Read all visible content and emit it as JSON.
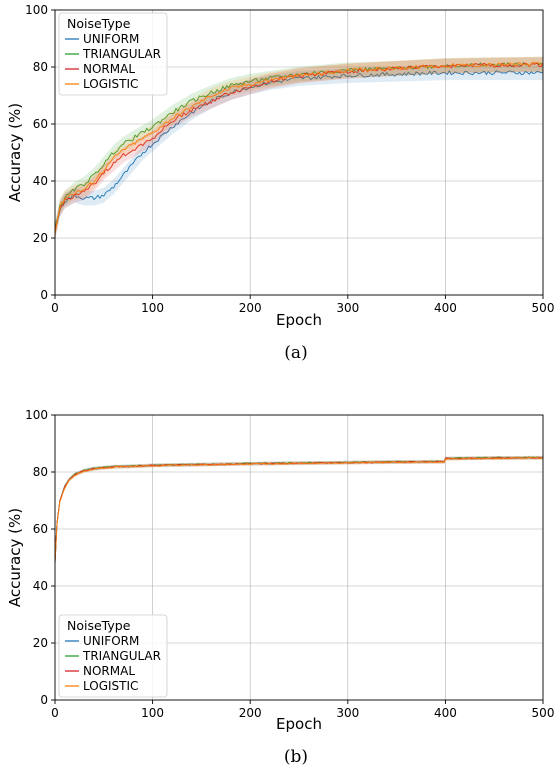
{
  "colors": {
    "UNIFORM": "#1f77b4",
    "TRIANGULAR": "#2ca02c",
    "NORMAL": "#d62728",
    "LOGISTIC": "#ff7f0e"
  },
  "chart_data": [
    {
      "id": "a",
      "type": "line",
      "caption": "(a)",
      "xlabel": "Epoch",
      "ylabel": "Accuracy (%)",
      "xlim": [
        0,
        500
      ],
      "ylim": [
        0,
        100
      ],
      "xticks": [
        0,
        100,
        200,
        300,
        400,
        500
      ],
      "yticks": [
        0,
        20,
        40,
        60,
        80,
        100
      ],
      "grid": true,
      "legend": {
        "title": "NoiseType",
        "placement": "top-left"
      },
      "series": [
        {
          "name": "UNIFORM",
          "x": [
            0,
            5,
            10,
            20,
            30,
            40,
            50,
            60,
            70,
            80,
            90,
            100,
            120,
            140,
            160,
            180,
            200,
            220,
            250,
            300,
            350,
            400,
            450,
            500
          ],
          "y": [
            22,
            30,
            33,
            35,
            34,
            34,
            35,
            38,
            42,
            46,
            50,
            53,
            59,
            64,
            68,
            71,
            73,
            74.5,
            76,
            77,
            77.5,
            78,
            78,
            78
          ]
        },
        {
          "name": "TRIANGULAR",
          "x": [
            0,
            5,
            10,
            20,
            30,
            40,
            50,
            60,
            70,
            80,
            90,
            100,
            120,
            140,
            160,
            180,
            200,
            220,
            250,
            300,
            350,
            400,
            450,
            500
          ],
          "y": [
            23,
            31,
            34,
            37,
            39,
            42,
            46,
            50,
            53,
            55,
            57,
            59,
            64,
            68,
            71,
            73.5,
            75,
            76,
            77.5,
            79,
            79.5,
            80.5,
            80.8,
            81
          ]
        },
        {
          "name": "NORMAL",
          "x": [
            0,
            5,
            10,
            20,
            30,
            40,
            50,
            60,
            70,
            80,
            90,
            100,
            120,
            140,
            160,
            180,
            200,
            220,
            250,
            300,
            350,
            400,
            450,
            500
          ],
          "y": [
            22,
            30,
            33,
            35,
            36,
            39,
            43,
            46,
            49,
            51,
            53,
            55,
            61,
            65,
            68,
            71,
            73,
            75,
            77,
            78.5,
            79.5,
            80.3,
            80.6,
            80.8
          ]
        },
        {
          "name": "LOGISTIC",
          "x": [
            0,
            5,
            10,
            20,
            30,
            40,
            50,
            60,
            70,
            80,
            90,
            100,
            120,
            140,
            160,
            180,
            200,
            220,
            250,
            300,
            350,
            400,
            450,
            500
          ],
          "y": [
            22,
            31,
            34,
            36,
            37,
            40,
            44,
            48,
            51,
            53,
            55,
            57,
            62,
            66,
            70,
            72.5,
            74,
            75.5,
            77,
            78.7,
            79.6,
            80.5,
            80.8,
            81
          ]
        }
      ]
    },
    {
      "id": "b",
      "type": "line",
      "caption": "(b)",
      "xlabel": "Epoch",
      "ylabel": "Accuracy (%)",
      "xlim": [
        0,
        500
      ],
      "ylim": [
        0,
        100
      ],
      "xticks": [
        0,
        100,
        200,
        300,
        400,
        500
      ],
      "yticks": [
        0,
        20,
        40,
        60,
        80,
        100
      ],
      "grid": true,
      "legend": {
        "title": "NoiseType",
        "placement": "bottom-left"
      },
      "series": [
        {
          "name": "UNIFORM",
          "x": [
            0,
            2,
            5,
            10,
            15,
            20,
            30,
            40,
            60,
            80,
            100,
            150,
            200,
            250,
            300,
            350,
            399,
            400,
            450,
            500
          ],
          "y": [
            48,
            62,
            70,
            75,
            77.5,
            79,
            80.5,
            81.2,
            81.8,
            82,
            82.3,
            82.6,
            82.9,
            83.1,
            83.3,
            83.5,
            83.6,
            84.7,
            84.9,
            85
          ]
        },
        {
          "name": "TRIANGULAR",
          "x": [
            0,
            2,
            5,
            10,
            15,
            20,
            30,
            40,
            60,
            80,
            100,
            150,
            200,
            250,
            300,
            350,
            399,
            400,
            450,
            500
          ],
          "y": [
            48,
            62,
            70,
            75,
            77.6,
            79.2,
            80.6,
            81.3,
            81.9,
            82.1,
            82.4,
            82.7,
            83,
            83.2,
            83.4,
            83.6,
            83.7,
            84.8,
            85,
            85.1
          ]
        },
        {
          "name": "NORMAL",
          "x": [
            0,
            2,
            5,
            10,
            15,
            20,
            30,
            40,
            60,
            80,
            100,
            150,
            200,
            250,
            300,
            350,
            399,
            400,
            450,
            500
          ],
          "y": [
            48,
            62,
            70,
            75,
            77.5,
            79.1,
            80.5,
            81.2,
            81.8,
            82,
            82.3,
            82.6,
            82.9,
            83.1,
            83.3,
            83.5,
            83.6,
            84.7,
            84.9,
            85
          ]
        },
        {
          "name": "LOGISTIC",
          "x": [
            0,
            2,
            5,
            10,
            15,
            20,
            30,
            40,
            60,
            80,
            100,
            150,
            200,
            250,
            300,
            350,
            399,
            400,
            450,
            500
          ],
          "y": [
            48,
            61.5,
            69.5,
            74.5,
            77.2,
            78.8,
            80.3,
            81,
            81.7,
            81.9,
            82.2,
            82.5,
            82.8,
            83,
            83.2,
            83.4,
            83.5,
            84.6,
            84.8,
            84.9
          ]
        }
      ]
    }
  ]
}
